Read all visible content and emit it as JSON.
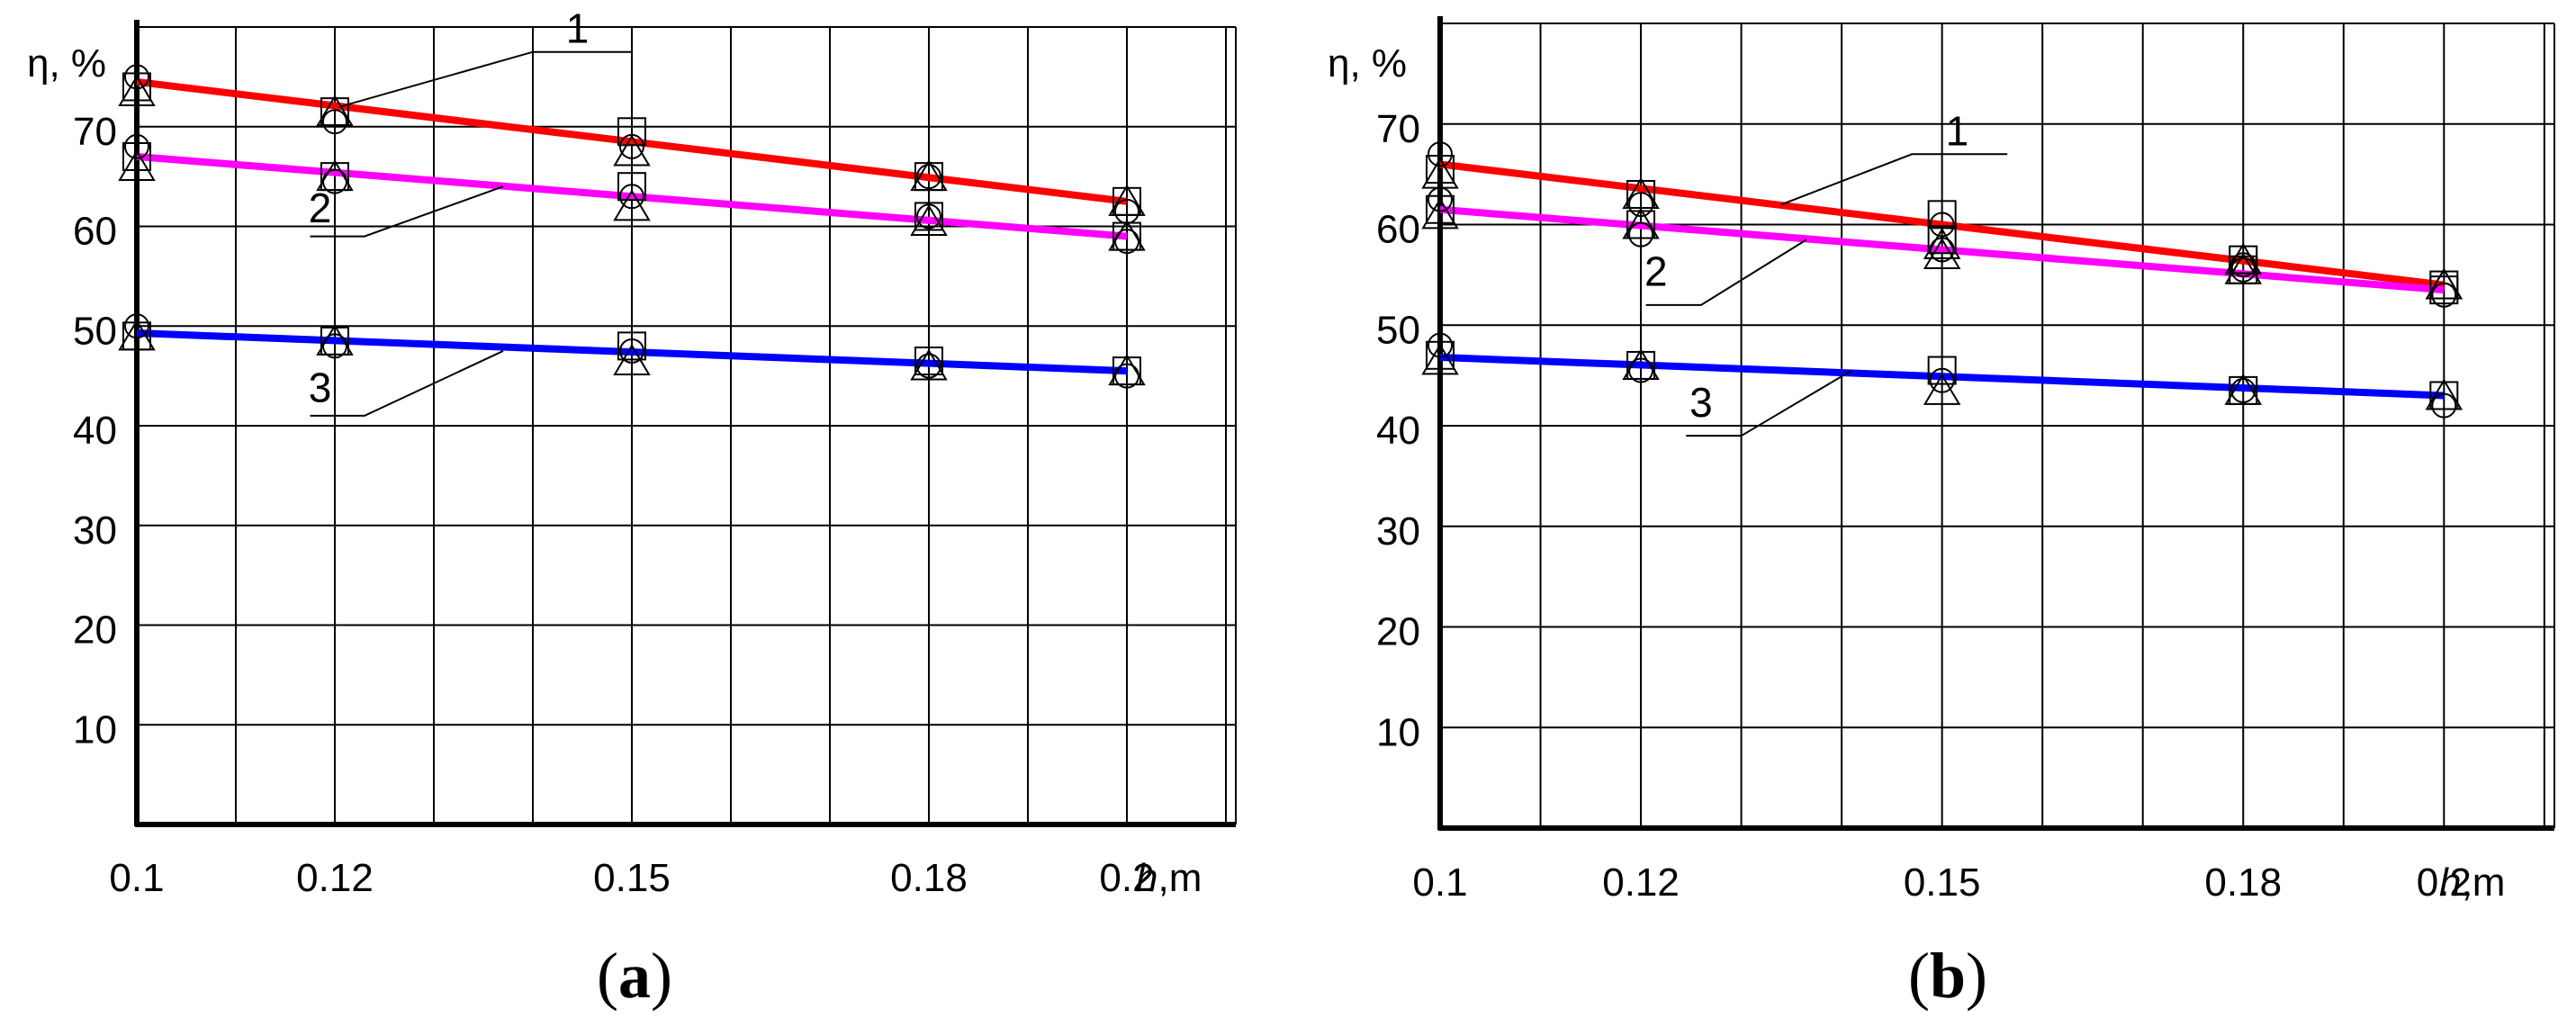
{
  "chart_data": [
    {
      "type": "line",
      "panel_label": "(a)",
      "ylabel": "η, %",
      "xlabel": "h,m",
      "x_ticks": [
        0.1,
        0.12,
        0.15,
        0.18,
        0.2
      ],
      "x_tick_labels": [
        "0.1",
        "0.12",
        "0.15",
        "0.18",
        "0.2"
      ],
      "y_ticks": [
        10,
        20,
        30,
        40,
        50,
        60,
        70
      ],
      "y_tick_labels": [
        "10",
        "20",
        "30",
        "40",
        "50",
        "60",
        "70"
      ],
      "xlim": [
        0.1,
        0.211
      ],
      "ylim": [
        0,
        80
      ],
      "grid": true,
      "series": [
        {
          "name": "1",
          "color": "#ff0000",
          "line": [
            [
              0.1,
              74.5
            ],
            [
              0.2,
              62.5
            ]
          ],
          "markers": {
            "square": [
              [
                0.1,
                74.0
              ],
              [
                0.12,
                71.5
              ],
              [
                0.15,
                69.5
              ],
              [
                0.18,
                65.0
              ],
              [
                0.2,
                62.5
              ]
            ],
            "circle": [
              [
                0.1,
                75.0
              ],
              [
                0.12,
                70.5
              ],
              [
                0.15,
                68.0
              ],
              [
                0.18,
                65.0
              ],
              [
                0.2,
                61.5
              ]
            ],
            "triangle": [
              [
                0.1,
                73.5
              ],
              [
                0.12,
                71.5
              ],
              [
                0.15,
                67.5
              ],
              [
                0.18,
                65.0
              ],
              [
                0.2,
                62.5
              ]
            ]
          }
        },
        {
          "name": "2",
          "color": "#ff00ff",
          "line": [
            [
              0.1,
              67.0
            ],
            [
              0.2,
              59.0
            ]
          ],
          "markers": {
            "square": [
              [
                0.1,
                67.0
              ],
              [
                0.12,
                65.0
              ],
              [
                0.15,
                64.0
              ],
              [
                0.18,
                61.0
              ],
              [
                0.2,
                59.0
              ]
            ],
            "circle": [
              [
                0.1,
                68.0
              ],
              [
                0.12,
                64.5
              ],
              [
                0.15,
                63.0
              ],
              [
                0.18,
                61.0
              ],
              [
                0.2,
                58.5
              ]
            ],
            "triangle": [
              [
                0.1,
                66.0
              ],
              [
                0.12,
                65.0
              ],
              [
                0.15,
                62.0
              ],
              [
                0.18,
                60.5
              ],
              [
                0.2,
                59.0
              ]
            ]
          }
        },
        {
          "name": "3",
          "color": "#0000ff",
          "line": [
            [
              0.1,
              49.3
            ],
            [
              0.2,
              45.5
            ]
          ],
          "markers": {
            "square": [
              [
                0.1,
                49.0
              ],
              [
                0.12,
                48.5
              ],
              [
                0.15,
                48.0
              ],
              [
                0.18,
                46.5
              ],
              [
                0.2,
                45.5
              ]
            ],
            "circle": [
              [
                0.1,
                50.0
              ],
              [
                0.12,
                48.0
              ],
              [
                0.15,
                47.5
              ],
              [
                0.18,
                46.0
              ],
              [
                0.2,
                45.0
              ]
            ],
            "triangle": [
              [
                0.1,
                49.0
              ],
              [
                0.12,
                48.5
              ],
              [
                0.15,
                46.5
              ],
              [
                0.18,
                46.0
              ],
              [
                0.2,
                45.5
              ]
            ]
          }
        }
      ]
    },
    {
      "type": "line",
      "panel_label": "(b)",
      "ylabel": "η, %",
      "xlabel": "h,m",
      "x_ticks": [
        0.1,
        0.12,
        0.15,
        0.18,
        0.2
      ],
      "x_tick_labels": [
        "0.1",
        "0.12",
        "0.15",
        "0.18",
        "0.2"
      ],
      "y_ticks": [
        10,
        20,
        30,
        40,
        50,
        60,
        70
      ],
      "y_tick_labels": [
        "10",
        "20",
        "30",
        "40",
        "50",
        "60",
        "70"
      ],
      "xlim": [
        0.1,
        0.211
      ],
      "ylim": [
        0,
        80
      ],
      "grid": true,
      "series": [
        {
          "name": "1",
          "color": "#ff0000",
          "line": [
            [
              0.1,
              66.0
            ],
            [
              0.2,
              54.0
            ]
          ],
          "markers": {
            "square": [
              [
                0.1,
                65.5
              ],
              [
                0.12,
                63.0
              ],
              [
                0.15,
                61.0
              ],
              [
                0.18,
                56.5
              ],
              [
                0.2,
                54.0
              ]
            ],
            "circle": [
              [
                0.1,
                67.0
              ],
              [
                0.12,
                62.0
              ],
              [
                0.15,
                60.0
              ],
              [
                0.18,
                56.0
              ],
              [
                0.2,
                53.0
              ]
            ],
            "triangle": [
              [
                0.1,
                65.0
              ],
              [
                0.12,
                63.0
              ],
              [
                0.15,
                58.0
              ],
              [
                0.18,
                56.5
              ],
              [
                0.2,
                54.0
              ]
            ]
          }
        },
        {
          "name": "2",
          "color": "#ff00ff",
          "line": [
            [
              0.1,
              61.5
            ],
            [
              0.2,
              53.5
            ]
          ],
          "markers": {
            "square": [
              [
                0.1,
                61.5
              ],
              [
                0.12,
                60.0
              ],
              [
                0.15,
                58.5
              ],
              [
                0.18,
                55.5
              ],
              [
                0.2,
                53.5
              ]
            ],
            "circle": [
              [
                0.1,
                62.5
              ],
              [
                0.12,
                59.0
              ],
              [
                0.15,
                57.5
              ],
              [
                0.18,
                55.5
              ],
              [
                0.2,
                53.0
              ]
            ],
            "triangle": [
              [
                0.1,
                61.0
              ],
              [
                0.12,
                60.0
              ],
              [
                0.15,
                57.0
              ],
              [
                0.18,
                55.5
              ],
              [
                0.2,
                54.0
              ]
            ]
          }
        },
        {
          "name": "3",
          "color": "#0000ff",
          "line": [
            [
              0.1,
              46.8
            ],
            [
              0.2,
              43.0
            ]
          ],
          "markers": {
            "square": [
              [
                0.1,
                47.0
              ],
              [
                0.12,
                46.0
              ],
              [
                0.15,
                45.5
              ],
              [
                0.18,
                43.5
              ],
              [
                0.2,
                43.0
              ]
            ],
            "circle": [
              [
                0.1,
                48.0
              ],
              [
                0.12,
                45.5
              ],
              [
                0.15,
                44.5
              ],
              [
                0.18,
                43.5
              ],
              [
                0.2,
                42.0
              ]
            ],
            "triangle": [
              [
                0.1,
                46.5
              ],
              [
                0.12,
                46.0
              ],
              [
                0.15,
                43.5
              ],
              [
                0.18,
                43.5
              ],
              [
                0.2,
                43.0
              ]
            ]
          }
        }
      ]
    }
  ]
}
